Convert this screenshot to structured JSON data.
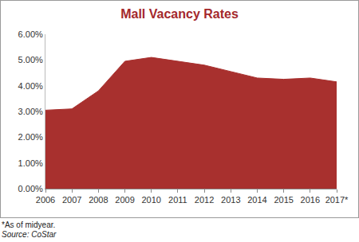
{
  "chart_data": {
    "type": "area",
    "title": "Mall Vacancy Rates",
    "categories": [
      "2006",
      "2007",
      "2008",
      "2009",
      "2010",
      "2011",
      "2012",
      "2013",
      "2014",
      "2015",
      "2016",
      "2017*"
    ],
    "values": [
      3.05,
      3.1,
      3.8,
      4.95,
      5.1,
      4.95,
      4.8,
      4.55,
      4.3,
      4.25,
      4.3,
      4.15
    ],
    "color": "#a8302e",
    "ylim": [
      0,
      6
    ],
    "yticks": [
      {
        "value": 0,
        "label": "0.00%"
      },
      {
        "value": 1,
        "label": "1.00%"
      },
      {
        "value": 2,
        "label": "2.00%"
      },
      {
        "value": 3,
        "label": "3.00%"
      },
      {
        "value": 4,
        "label": "4.00%"
      },
      {
        "value": 5,
        "label": "5.00%"
      },
      {
        "value": 6,
        "label": "6.00%"
      }
    ],
    "grid": false,
    "annotations": [
      "*As of midyear.",
      "Source: CoStar"
    ]
  }
}
